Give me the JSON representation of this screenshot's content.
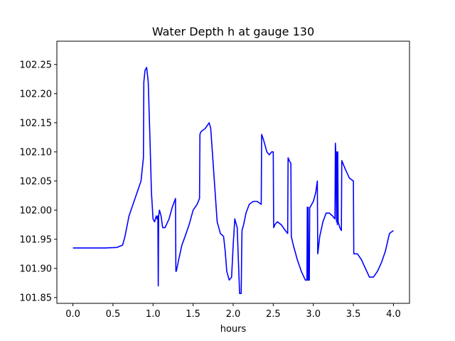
{
  "chart_data": {
    "type": "line",
    "title": "Water Depth h at gauge 130",
    "xlabel": "hours",
    "ylabel": "",
    "xlim": [
      -0.2,
      4.2
    ],
    "ylim": [
      101.84,
      102.29
    ],
    "xticks": [
      0.0,
      0.5,
      1.0,
      1.5,
      2.0,
      2.5,
      3.0,
      3.5,
      4.0
    ],
    "xtick_labels": [
      "0.0",
      "0.5",
      "1.0",
      "1.5",
      "2.0",
      "2.5",
      "3.0",
      "3.5",
      "4.0"
    ],
    "yticks": [
      101.85,
      101.9,
      101.95,
      102.0,
      102.05,
      102.1,
      102.15,
      102.2,
      102.25
    ],
    "ytick_labels": [
      "101.85",
      "101.90",
      "101.95",
      "102.00",
      "102.05",
      "102.10",
      "102.15",
      "102.20",
      "102.25"
    ],
    "grid": false,
    "legend": "none",
    "line_color": "#0000ff",
    "series": [
      {
        "x": [
          0.0,
          0.2,
          0.4,
          0.55,
          0.62,
          0.65,
          0.7,
          0.75,
          0.8,
          0.85,
          0.88,
          0.885,
          0.9,
          0.92,
          0.94,
          0.96,
          0.98,
          1.0,
          1.02,
          1.04,
          1.05,
          1.06,
          1.065,
          1.07,
          1.08,
          1.1,
          1.12,
          1.15,
          1.2,
          1.24,
          1.28,
          1.285,
          1.29,
          1.32,
          1.36,
          1.4,
          1.45,
          1.5,
          1.55,
          1.58,
          1.585,
          1.6,
          1.65,
          1.7,
          1.72,
          1.74,
          1.76,
          1.8,
          1.84,
          1.88,
          1.9,
          1.92,
          1.95,
          1.98,
          2.0,
          2.02,
          2.05,
          2.08,
          2.1,
          2.105,
          2.11,
          2.13,
          2.16,
          2.2,
          2.25,
          2.3,
          2.35,
          2.355,
          2.38,
          2.42,
          2.45,
          2.48,
          2.5,
          2.505,
          2.52,
          2.55,
          2.6,
          2.65,
          2.68,
          2.685,
          2.7,
          2.72,
          2.725,
          2.75,
          2.8,
          2.85,
          2.9,
          2.92,
          2.925,
          2.93,
          2.935,
          2.94,
          2.95,
          2.955,
          2.96,
          3.0,
          3.03,
          3.05,
          3.055,
          3.06,
          3.08,
          3.12,
          3.16,
          3.2,
          3.24,
          3.27,
          3.275,
          3.28,
          3.29,
          3.295,
          3.3,
          3.305,
          3.31,
          3.32,
          3.33,
          3.35,
          3.355,
          3.37,
          3.4,
          3.45,
          3.5,
          3.505,
          3.55,
          3.6,
          3.65,
          3.7,
          3.75,
          3.8,
          3.85,
          3.9,
          3.95,
          4.0
        ],
        "y": [
          101.935,
          101.935,
          101.935,
          101.936,
          101.94,
          101.955,
          101.99,
          102.01,
          102.03,
          102.05,
          102.09,
          102.22,
          102.24,
          102.245,
          102.22,
          102.13,
          102.03,
          101.985,
          101.98,
          101.99,
          101.985,
          101.99,
          101.87,
          101.99,
          102.0,
          101.99,
          101.97,
          101.97,
          101.985,
          102.005,
          102.02,
          101.895,
          101.895,
          101.915,
          101.94,
          101.955,
          101.975,
          102.0,
          102.01,
          102.02,
          102.13,
          102.135,
          102.14,
          102.15,
          102.14,
          102.1,
          102.06,
          101.98,
          101.96,
          101.955,
          101.93,
          101.895,
          101.88,
          101.885,
          101.94,
          101.985,
          101.97,
          101.857,
          101.857,
          101.92,
          101.965,
          101.975,
          101.995,
          102.01,
          102.015,
          102.015,
          102.01,
          102.13,
          102.12,
          102.1,
          102.095,
          102.1,
          102.1,
          101.97,
          101.975,
          101.98,
          101.975,
          101.965,
          101.96,
          102.09,
          102.085,
          102.08,
          101.955,
          101.94,
          101.915,
          101.895,
          101.88,
          101.88,
          102.005,
          101.88,
          102.005,
          101.88,
          101.88,
          102.005,
          102.005,
          102.015,
          102.03,
          102.05,
          101.925,
          101.93,
          101.955,
          101.98,
          101.995,
          101.995,
          101.99,
          101.985,
          102.115,
          102.1,
          101.98,
          102.1,
          101.975,
          102.1,
          101.98,
          101.975,
          101.97,
          101.965,
          102.085,
          102.08,
          102.07,
          102.055,
          102.05,
          101.925,
          101.925,
          101.915,
          101.9,
          101.885,
          101.885,
          101.895,
          101.91,
          101.93,
          101.96,
          101.965
        ]
      }
    ]
  }
}
